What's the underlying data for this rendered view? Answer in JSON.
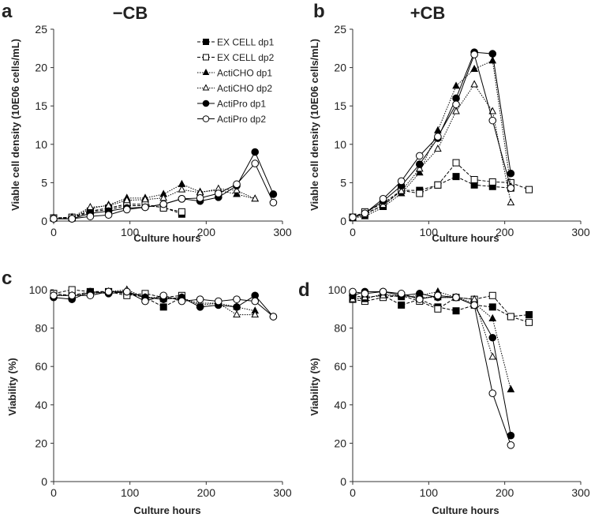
{
  "series_styles": [
    {
      "name": "EX CELL dp1",
      "marker": "square",
      "filled": true,
      "dash": "4,2"
    },
    {
      "name": "EX CELL dp2",
      "marker": "square",
      "filled": false,
      "dash": "4,2"
    },
    {
      "name": "ActiCHO dp1",
      "marker": "triangle",
      "filled": true,
      "dash": "1.5,1.5"
    },
    {
      "name": "ActiCHO dp2",
      "marker": "triangle",
      "filled": false,
      "dash": "1.5,1.5"
    },
    {
      "name": "ActiPro dp1",
      "marker": "circle",
      "filled": true,
      "dash": ""
    },
    {
      "name": "ActiPro dp2",
      "marker": "circle",
      "filled": false,
      "dash": ""
    }
  ],
  "chart_data": [
    {
      "panel": "a",
      "title": "−CB",
      "type": "line",
      "xlabel": "Culture hours",
      "ylabel": "Viable cell density (10E06 cells/mL)",
      "xlim": [
        0,
        300
      ],
      "ylim": [
        0,
        25
      ],
      "xticks": [
        0,
        100,
        200,
        300
      ],
      "yticks": [
        0,
        5,
        10,
        15,
        20,
        25
      ],
      "legend": "top-right",
      "series": [
        {
          "name": "EX CELL dp1",
          "x": [
            0,
            24,
            48,
            72,
            96,
            120,
            144,
            168
          ],
          "y": [
            0.4,
            0.4,
            1.2,
            1.5,
            2.0,
            2.0,
            1.8,
            0.9
          ]
        },
        {
          "name": "EX CELL dp2",
          "x": [
            0,
            24,
            48,
            72,
            96,
            120,
            144,
            168
          ],
          "y": [
            0.4,
            0.5,
            1.3,
            1.7,
            2.2,
            2.2,
            1.7,
            1.2
          ]
        },
        {
          "name": "ActiCHO dp1",
          "x": [
            0,
            24,
            48,
            72,
            96,
            120,
            144,
            168,
            192,
            216,
            240,
            264
          ],
          "y": [
            0.4,
            0.4,
            1.6,
            2.1,
            3.0,
            3.0,
            3.5,
            4.8,
            3.8,
            4.0,
            3.5,
            2.9
          ]
        },
        {
          "name": "ActiCHO dp2",
          "x": [
            0,
            24,
            48,
            72,
            96,
            120,
            144,
            168,
            192,
            216,
            240,
            264
          ],
          "y": [
            0.4,
            0.5,
            1.8,
            2.0,
            2.7,
            2.8,
            3.0,
            4.1,
            3.7,
            4.2,
            4.0,
            2.9
          ]
        },
        {
          "name": "ActiPro dp1",
          "x": [
            0,
            24,
            48,
            72,
            96,
            120,
            144,
            168,
            192,
            216,
            240,
            264,
            288
          ],
          "y": [
            0.3,
            0.3,
            1.0,
            1.3,
            1.7,
            1.8,
            2.2,
            2.9,
            2.6,
            3.1,
            4.6,
            9.0,
            3.5
          ]
        },
        {
          "name": "ActiPro dp2",
          "x": [
            0,
            24,
            48,
            72,
            96,
            120,
            144,
            168,
            192,
            216,
            240,
            264,
            288
          ],
          "y": [
            0.3,
            0.3,
            0.6,
            0.8,
            1.5,
            1.8,
            2.2,
            2.9,
            3.0,
            3.6,
            4.8,
            7.5,
            2.4
          ]
        }
      ]
    },
    {
      "panel": "b",
      "title": "+CB",
      "type": "line",
      "xlabel": "Culture hours",
      "ylabel": "Viable cell density (10E06 cells/mL)",
      "xlim": [
        0,
        300
      ],
      "ylim": [
        0,
        25
      ],
      "xticks": [
        0,
        100,
        200,
        300
      ],
      "yticks": [
        0,
        5,
        10,
        15,
        20,
        25
      ],
      "series": [
        {
          "name": "EX CELL dp1",
          "x": [
            0,
            16,
            40,
            64,
            88,
            112,
            136,
            160,
            184,
            208
          ],
          "y": [
            0.5,
            1.0,
            2.0,
            4.0,
            4.0,
            4.7,
            5.8,
            4.7,
            4.5,
            4.3
          ]
        },
        {
          "name": "EX CELL dp2",
          "x": [
            0,
            16,
            40,
            64,
            88,
            112,
            136,
            160,
            184,
            208,
            232
          ],
          "y": [
            0.5,
            1.2,
            2.3,
            4.0,
            3.6,
            4.7,
            7.6,
            5.4,
            5.1,
            5.0,
            4.1
          ]
        },
        {
          "name": "ActiCHO dp1",
          "x": [
            0,
            16,
            40,
            64,
            88,
            112,
            136,
            160,
            184,
            208
          ],
          "y": [
            0.4,
            0.6,
            1.8,
            3.6,
            6.3,
            11.8,
            17.6,
            19.8,
            20.9,
            4.5
          ]
        },
        {
          "name": "ActiCHO dp2",
          "x": [
            0,
            16,
            40,
            64,
            88,
            112,
            136,
            160,
            184,
            208
          ],
          "y": [
            0.4,
            0.8,
            2.1,
            3.9,
            6.8,
            9.4,
            14.3,
            17.8,
            14.3,
            2.4
          ]
        },
        {
          "name": "ActiPro dp1",
          "x": [
            0,
            16,
            40,
            64,
            88,
            112,
            136,
            160,
            184,
            208
          ],
          "y": [
            0.5,
            1.0,
            2.6,
            4.6,
            7.4,
            10.8,
            16.0,
            22.0,
            21.8,
            6.2
          ]
        },
        {
          "name": "ActiPro dp2",
          "x": [
            0,
            16,
            40,
            64,
            88,
            112,
            136,
            160,
            184,
            208
          ],
          "y": [
            0.5,
            1.0,
            2.9,
            5.2,
            8.5,
            11.0,
            15.2,
            21.7,
            13.1,
            4.3
          ]
        }
      ]
    },
    {
      "panel": "c",
      "title": "",
      "type": "line",
      "xlabel": "Culture hours",
      "ylabel": "Viability (%)",
      "xlim": [
        0,
        300
      ],
      "ylim": [
        0,
        100
      ],
      "xticks": [
        0,
        100,
        200,
        300
      ],
      "yticks": [
        0,
        20,
        40,
        60,
        80,
        100
      ],
      "series": [
        {
          "name": "EX CELL dp1",
          "x": [
            0,
            24,
            48,
            72,
            96,
            120,
            144,
            168
          ],
          "y": [
            98,
            97,
            99,
            99,
            98,
            96,
            91,
            96
          ]
        },
        {
          "name": "EX CELL dp2",
          "x": [
            0,
            24,
            48,
            72,
            96,
            120,
            144,
            168
          ],
          "y": [
            98,
            100,
            99,
            99,
            97,
            98,
            96,
            97
          ]
        },
        {
          "name": "ActiCHO dp1",
          "x": [
            0,
            24,
            48,
            72,
            96,
            120,
            144,
            168,
            192,
            216,
            240,
            264
          ],
          "y": [
            97,
            97,
            98,
            99,
            99,
            96,
            95,
            96,
            92,
            93,
            91,
            89
          ]
        },
        {
          "name": "ActiCHO dp2",
          "x": [
            0,
            24,
            48,
            72,
            96,
            120,
            144,
            168,
            192,
            216,
            240,
            264
          ],
          "y": [
            97,
            97,
            98,
            99,
            100,
            96,
            96,
            95,
            93,
            93,
            87,
            87
          ]
        },
        {
          "name": "ActiPro dp1",
          "x": [
            0,
            24,
            48,
            72,
            96,
            120,
            144,
            168,
            192,
            216,
            240,
            264,
            288
          ],
          "y": [
            96,
            95,
            99,
            98,
            99,
            96,
            95,
            96,
            91,
            92,
            91,
            97,
            86
          ]
        },
        {
          "name": "ActiPro dp2",
          "x": [
            0,
            24,
            48,
            72,
            96,
            120,
            144,
            168,
            192,
            216,
            240,
            264,
            288
          ],
          "y": [
            97,
            97,
            97,
            99,
            99,
            94,
            97,
            94,
            95,
            94,
            95,
            94,
            86
          ]
        }
      ]
    },
    {
      "panel": "d",
      "title": "",
      "type": "line",
      "xlabel": "Culture hours",
      "ylabel": "Viability (%)",
      "xlim": [
        0,
        300
      ],
      "ylim": [
        0,
        100
      ],
      "xticks": [
        0,
        100,
        200,
        300
      ],
      "yticks": [
        0,
        20,
        40,
        60,
        80,
        100
      ],
      "series": [
        {
          "name": "EX CELL dp1",
          "x": [
            0,
            16,
            40,
            64,
            88,
            112,
            136,
            160,
            184,
            208,
            232
          ],
          "y": [
            97,
            96,
            97,
            92,
            95,
            91,
            89,
            92,
            91,
            86,
            87
          ]
        },
        {
          "name": "EX CELL dp2",
          "x": [
            0,
            16,
            40,
            64,
            88,
            112,
            136,
            160,
            184,
            208,
            232
          ],
          "y": [
            95,
            94,
            96,
            97,
            94,
            90,
            96,
            95,
            97,
            86,
            83
          ]
        },
        {
          "name": "ActiCHO dp1",
          "x": [
            0,
            16,
            40,
            64,
            88,
            112,
            136,
            160,
            184,
            208
          ],
          "y": [
            96,
            95,
            98,
            96,
            97,
            99,
            96,
            93,
            85,
            48
          ]
        },
        {
          "name": "ActiCHO dp2",
          "x": [
            0,
            16,
            40,
            64,
            88,
            112,
            136,
            160,
            184
          ],
          "y": [
            95,
            96,
            97,
            97,
            96,
            96,
            96,
            95,
            65
          ]
        },
        {
          "name": "ActiPro dp1",
          "x": [
            0,
            16,
            40,
            64,
            88,
            112,
            136,
            160,
            184,
            208
          ],
          "y": [
            97,
            99,
            99,
            97,
            98,
            96,
            96,
            92,
            75,
            24
          ]
        },
        {
          "name": "ActiPro dp2",
          "x": [
            0,
            16,
            40,
            64,
            88,
            112,
            136,
            160,
            184,
            208
          ],
          "y": [
            99,
            98,
            99,
            98,
            95,
            97,
            96,
            92,
            46,
            19
          ]
        }
      ]
    }
  ]
}
